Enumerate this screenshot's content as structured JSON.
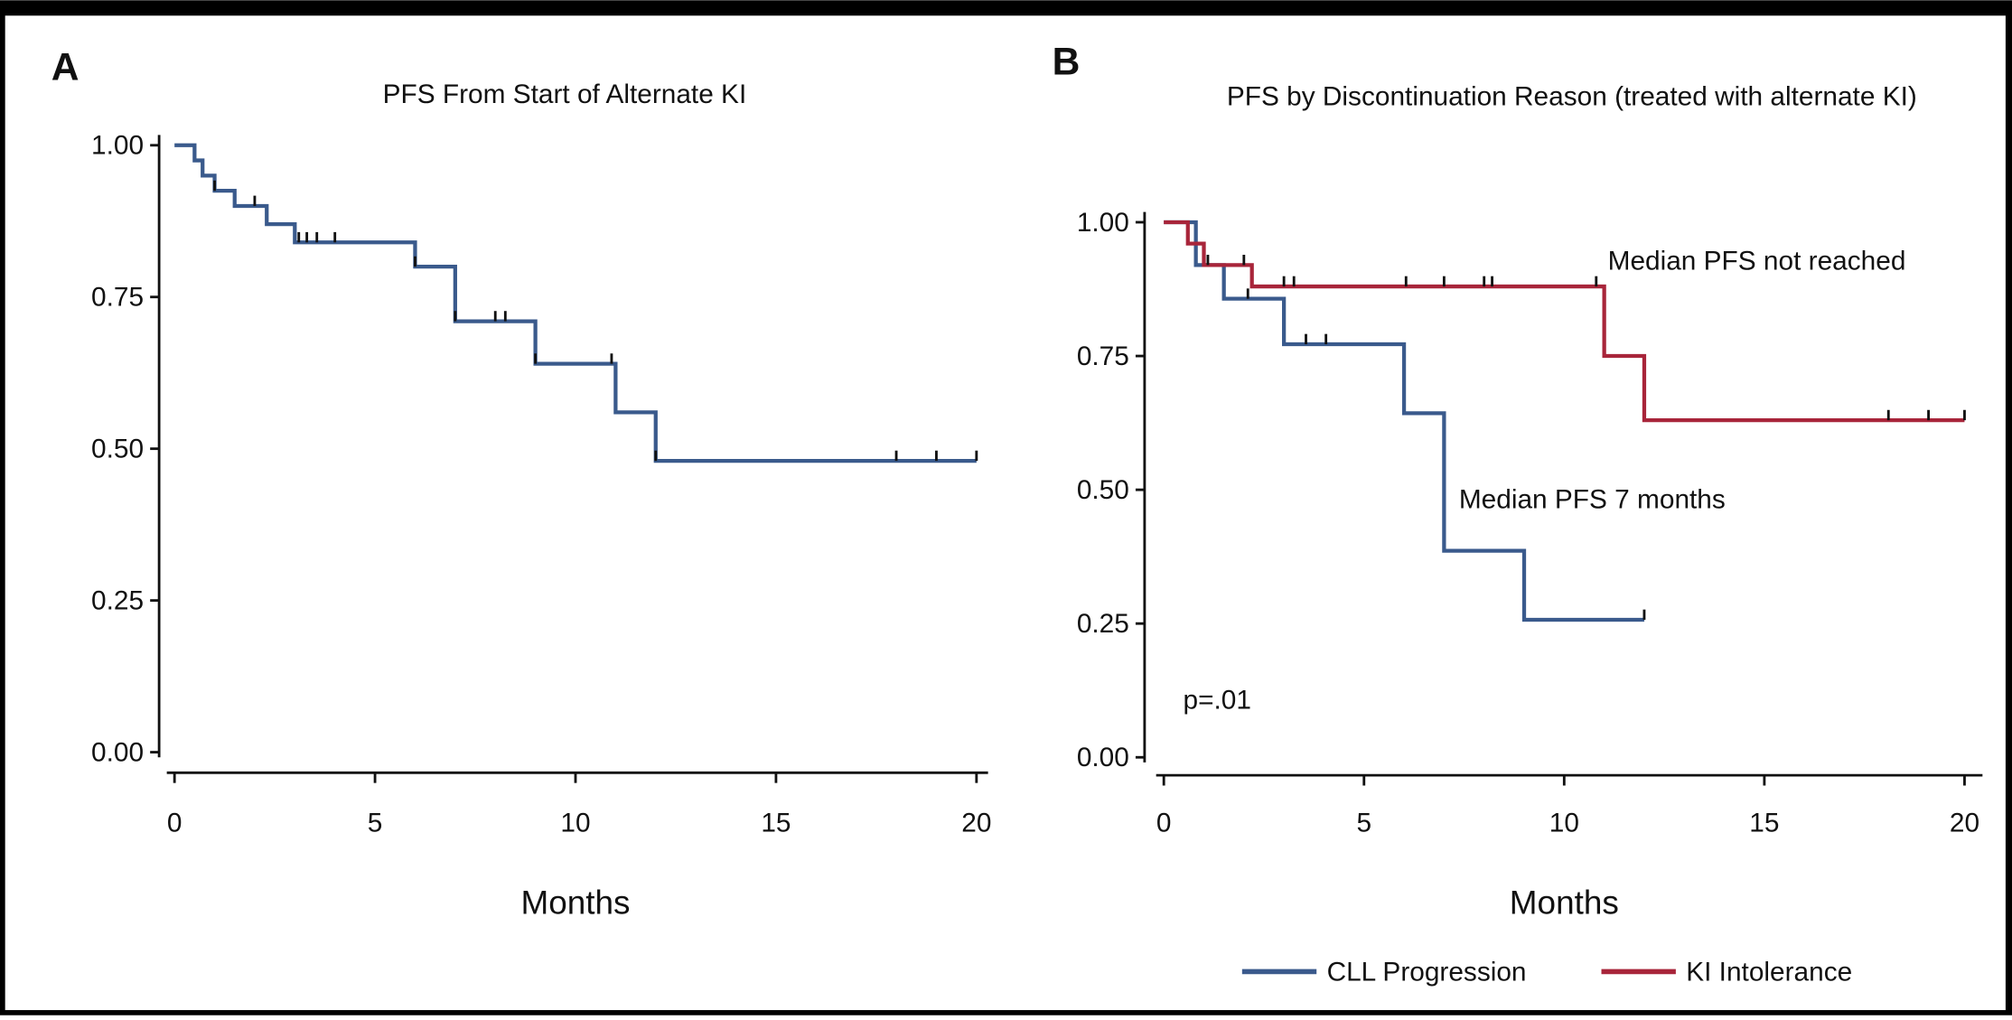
{
  "chart_data": [
    {
      "type": "step",
      "panel_label": "A",
      "title": "PFS From Start of Alternate KI",
      "xlabel": "Months",
      "xlim": [
        0,
        20
      ],
      "xticks": [
        0,
        5,
        10,
        15,
        20
      ],
      "ylim": [
        0,
        1
      ],
      "yticks": [
        {
          "value": 0,
          "label": "0.00"
        },
        {
          "value": 0.25,
          "label": "0.25"
        },
        {
          "value": 0.5,
          "label": "0.50"
        },
        {
          "value": 0.75,
          "label": "0.75"
        },
        {
          "value": 1,
          "label": "1.00"
        }
      ],
      "series": [
        {
          "color": "#3a5a8c",
          "x": [
            0,
            0.5,
            0.7,
            1,
            1.5,
            2.3,
            3,
            6,
            7,
            9,
            11,
            12,
            20
          ],
          "values": [
            1,
            0.975,
            0.95,
            0.925,
            0.9,
            0.87,
            0.84,
            0.8,
            0.71,
            0.64,
            0.56,
            0.48,
            0.48
          ],
          "censor_x": [
            1,
            2,
            3.1,
            3.3,
            3.55,
            4,
            6,
            7,
            8,
            8.25,
            9,
            10.9,
            12,
            18,
            19,
            20
          ],
          "censor_values": [
            0.925,
            0.9,
            0.84,
            0.84,
            0.84,
            0.84,
            0.8,
            0.71,
            0.71,
            0.71,
            0.64,
            0.64,
            0.48,
            0.48,
            0.48,
            0.48
          ]
        }
      ],
      "annotations": []
    },
    {
      "type": "step",
      "panel_label": "B",
      "title": "PFS by Discontinuation Reason (treated with alternate KI)",
      "xlabel": "Months",
      "xlim": [
        0,
        20
      ],
      "xticks": [
        0,
        5,
        10,
        15,
        20
      ],
      "ylim": [
        0,
        1
      ],
      "yticks": [
        {
          "value": 0,
          "label": "0.00"
        },
        {
          "value": 0.25,
          "label": "0.25"
        },
        {
          "value": 0.5,
          "label": "0.50"
        },
        {
          "value": 0.75,
          "label": "0.75"
        },
        {
          "value": 1,
          "label": "1.00"
        }
      ],
      "series": [
        {
          "name": "CLL Progression",
          "color": "#3a5a8c",
          "x": [
            0,
            0.8,
            1.5,
            3,
            6,
            7,
            9,
            12
          ],
          "values": [
            1,
            0.92,
            0.857,
            0.772,
            0.643,
            0.386,
            0.257,
            0.257
          ],
          "censor_x": [
            2.1,
            3.55,
            4.05,
            12
          ],
          "censor_values": [
            0.857,
            0.772,
            0.772,
            0.257
          ]
        },
        {
          "name": "KI Intolerance",
          "color": "#a8253a",
          "x": [
            0,
            0.6,
            1,
            2.2,
            11,
            12,
            20
          ],
          "values": [
            1,
            0.96,
            0.92,
            0.88,
            0.75,
            0.63,
            0.63
          ],
          "censor_x": [
            1.1,
            2,
            3,
            3.25,
            6.05,
            7,
            8,
            8.2,
            10.8,
            18.1,
            19.1,
            20
          ],
          "censor_values": [
            0.92,
            0.92,
            0.88,
            0.88,
            0.88,
            0.88,
            0.88,
            0.88,
            0.88,
            0.63,
            0.63,
            0.63
          ]
        }
      ],
      "annotations": [
        "Median PFS not reached",
        "Median PFS 7 months",
        "p=.01"
      ]
    }
  ]
}
